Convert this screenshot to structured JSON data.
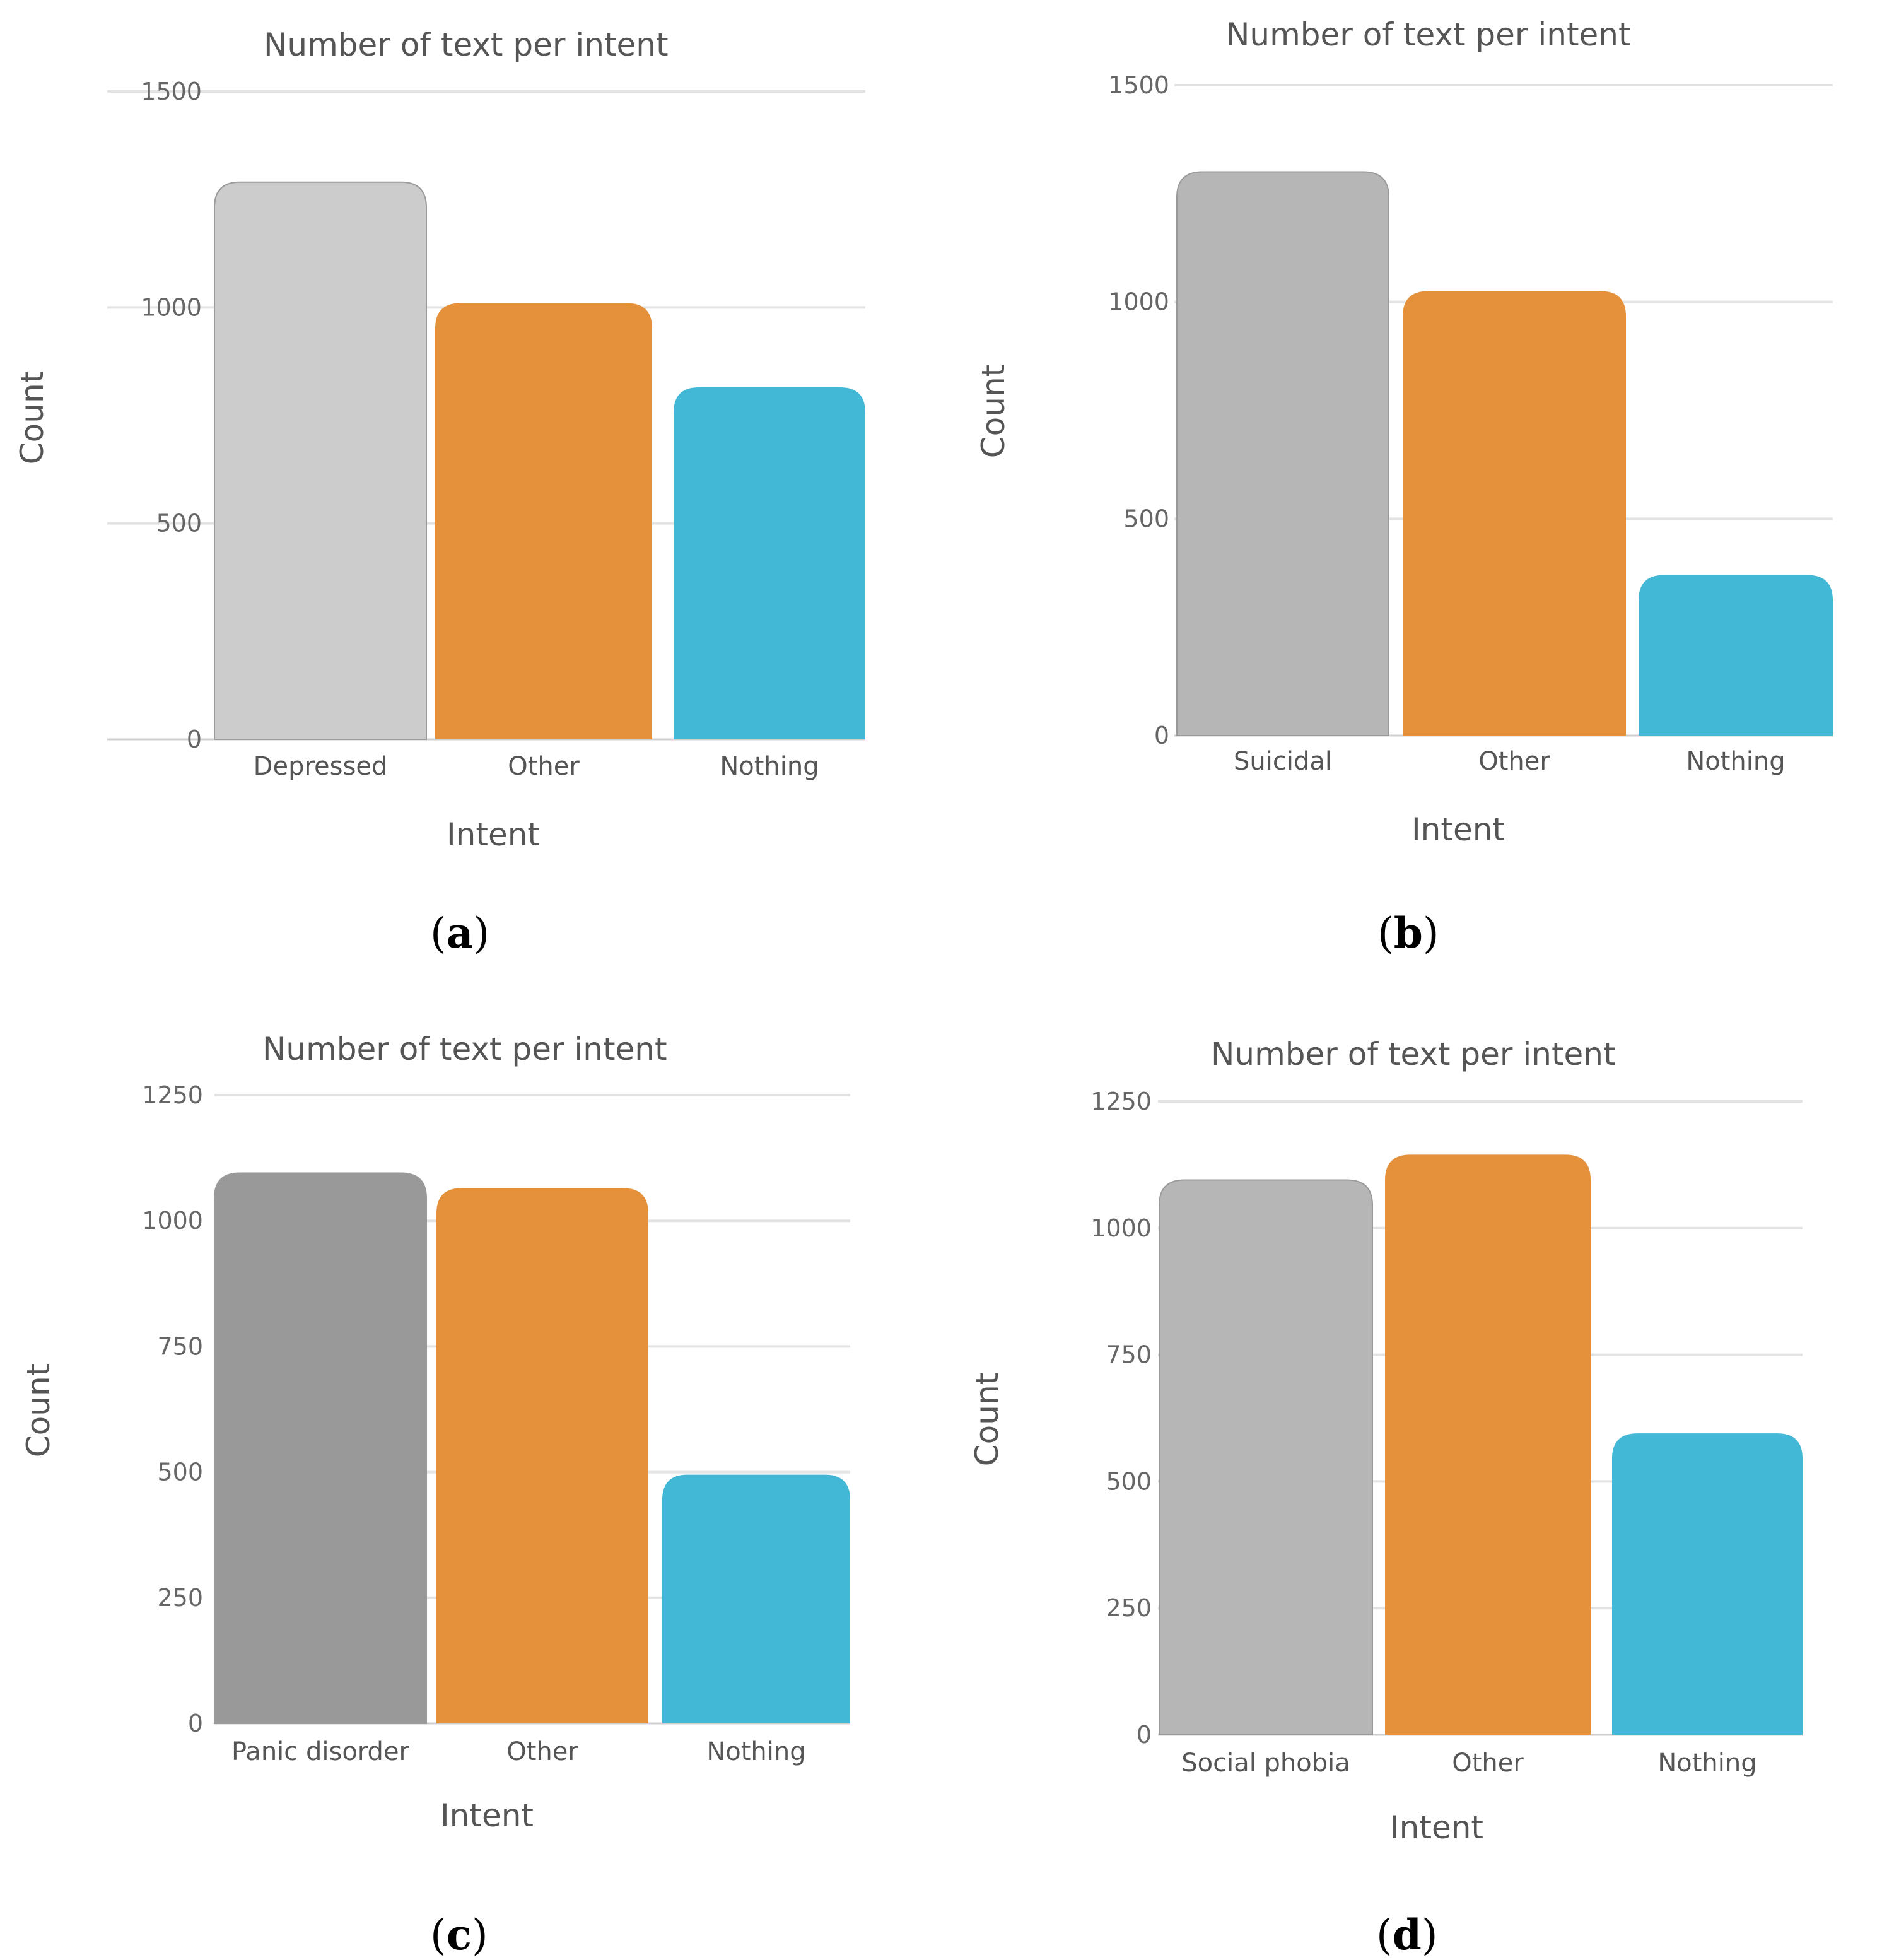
{
  "chart_data": [
    {
      "id": "a",
      "type": "bar",
      "title": "Number of text per intent",
      "xlabel": "Intent",
      "ylabel": "Count",
      "categories": [
        "Depressed",
        "Other",
        "Nothing"
      ],
      "values": [
        1290,
        1010,
        815
      ],
      "colors": [
        "#cccccc",
        "#e5903a",
        "#42b7d6"
      ],
      "yticks": [
        0,
        500,
        1000,
        1500
      ],
      "ylim": [
        0,
        1500
      ],
      "grid": true,
      "caption_letter": "a"
    },
    {
      "id": "b",
      "type": "bar",
      "title": "Number of text per intent",
      "xlabel": "Intent",
      "ylabel": "Count",
      "categories": [
        "Suicidal",
        "Other",
        "Nothing"
      ],
      "values": [
        1300,
        1025,
        370
      ],
      "colors": [
        "#b6b6b6",
        "#e5903a",
        "#42b7d6"
      ],
      "yticks": [
        0,
        500,
        1000,
        1500
      ],
      "ylim": [
        0,
        1500
      ],
      "grid": true,
      "caption_letter": "b"
    },
    {
      "id": "c",
      "type": "bar",
      "title": "Number of text per intent",
      "xlabel": "Intent",
      "ylabel": "Count",
      "categories": [
        "Panic disorder",
        "Other",
        "Nothing"
      ],
      "values": [
        1095,
        1065,
        495
      ],
      "colors": [
        "#999999",
        "#e5903a",
        "#42b7d6"
      ],
      "yticks": [
        0,
        250,
        500,
        750,
        1000,
        1250
      ],
      "ylim": [
        0,
        1250
      ],
      "grid": true,
      "caption_letter": "c"
    },
    {
      "id": "d",
      "type": "bar",
      "title": "Number of text per intent",
      "xlabel": "Intent",
      "ylabel": "Count",
      "categories": [
        "Social phobia",
        "Other",
        "Nothing"
      ],
      "values": [
        1095,
        1145,
        595
      ],
      "colors": [
        "#b6b6b6",
        "#e5903a",
        "#42b7d6"
      ],
      "yticks": [
        0,
        250,
        500,
        750,
        1000,
        1250
      ],
      "ylim": [
        0,
        1250
      ],
      "grid": true,
      "caption_letter": "d"
    }
  ]
}
